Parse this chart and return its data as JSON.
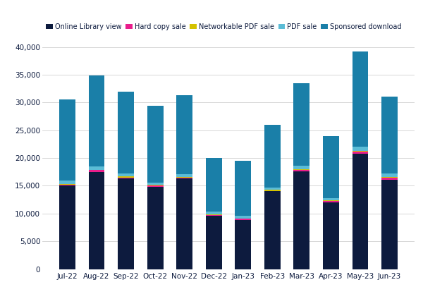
{
  "months": [
    "Jul-22",
    "Aug-22",
    "Sep-22",
    "Oct-22",
    "Nov-22",
    "Dec-22",
    "Jan-23",
    "Feb-23",
    "Mar-23",
    "Apr-23",
    "May-23",
    "Jun-23"
  ],
  "online_library_view": [
    15000,
    17500,
    16300,
    14800,
    16300,
    9600,
    8800,
    14000,
    17600,
    12000,
    20800,
    16100
  ],
  "hard_copy_sale": [
    200,
    300,
    200,
    200,
    200,
    150,
    250,
    100,
    300,
    250,
    350,
    400
  ],
  "networkable_pdf_sale": [
    100,
    100,
    200,
    150,
    100,
    100,
    100,
    200,
    100,
    100,
    100,
    100
  ],
  "pdf_sale": [
    700,
    600,
    500,
    400,
    500,
    450,
    400,
    400,
    600,
    400,
    800,
    600
  ],
  "sponsored_download": [
    14500,
    16400,
    14800,
    13800,
    14200,
    9700,
    9950,
    11300,
    14900,
    11200,
    17100,
    13900
  ],
  "colors": {
    "online_library_view": "#0d1b3e",
    "hard_copy_sale": "#e91e8c",
    "networkable_pdf_sale": "#d4c200",
    "pdf_sale": "#5bbcd6",
    "sponsored_download": "#1a7fa8"
  },
  "legend_labels": [
    "Online Library view",
    "Hard copy sale",
    "Networkable PDF sale",
    "PDF sale",
    "Sponsored download"
  ],
  "ylim": [
    0,
    42000
  ],
  "yticks": [
    0,
    5000,
    10000,
    15000,
    20000,
    25000,
    30000,
    35000,
    40000
  ],
  "background_color": "#ffffff",
  "grid_color": "#d0d0d0",
  "fig_width": 6.0,
  "fig_height": 4.24,
  "dpi": 100
}
